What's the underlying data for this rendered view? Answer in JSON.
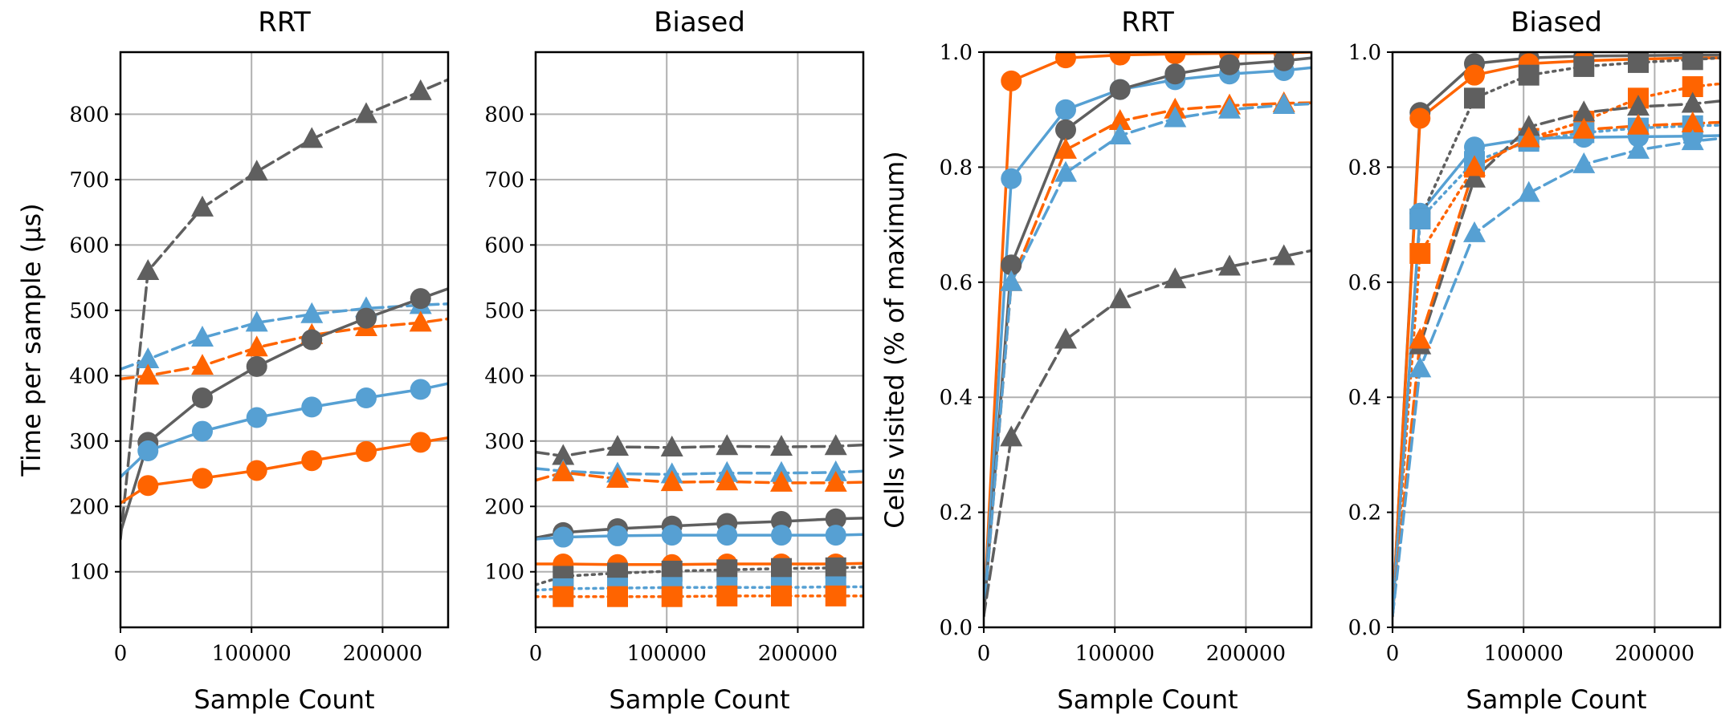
{
  "colors": {
    "orange": "#ff6400",
    "blue": "#56a0d3",
    "gray": "#5f5f5f",
    "grid": "#b0b0b0"
  },
  "chart_data": [
    {
      "type": "line",
      "title": "RRT",
      "xlabel": "Sample Count",
      "ylabel": "Time per sample (μs)",
      "xlim": [
        0,
        250000
      ],
      "ylim": [
        15,
        895
      ],
      "xticks": [
        0,
        100000,
        200000
      ],
      "xtick_labels": [
        "0",
        "100000",
        "200000"
      ],
      "yticks": [
        100,
        200,
        300,
        400,
        500,
        600,
        700,
        800
      ],
      "ytick_labels": [
        "100",
        "200",
        "300",
        "400",
        "500",
        "600",
        "700",
        "800"
      ],
      "series": [
        {
          "name": "gray triangle dashed",
          "color": "gray",
          "marker": "triangle",
          "dash": "dashed",
          "x": [
            0,
            21000,
            62500,
            104000,
            146000,
            187500,
            229000,
            250000
          ],
          "values": [
            150,
            560,
            657,
            712,
            762,
            800,
            835,
            853
          ]
        },
        {
          "name": "blue triangle dashed",
          "color": "blue",
          "marker": "triangle",
          "dash": "dashed",
          "x": [
            0,
            21000,
            62500,
            104000,
            146000,
            187500,
            229000,
            250000
          ],
          "values": [
            410,
            425,
            458,
            481,
            494,
            503,
            508,
            510
          ]
        },
        {
          "name": "orange triangle dashed",
          "color": "orange",
          "marker": "triangle",
          "dash": "dashed",
          "x": [
            0,
            21000,
            62500,
            104000,
            146000,
            187500,
            229000,
            250000
          ],
          "values": [
            395,
            400,
            415,
            443,
            462,
            474,
            481,
            487
          ]
        },
        {
          "name": "gray circle solid",
          "color": "gray",
          "marker": "circle",
          "dash": "solid",
          "x": [
            0,
            21000,
            62500,
            104000,
            146000,
            187500,
            229000,
            250000
          ],
          "values": [
            160,
            298,
            366,
            414,
            455,
            488,
            518,
            533
          ]
        },
        {
          "name": "blue circle solid",
          "color": "blue",
          "marker": "circle",
          "dash": "solid",
          "x": [
            0,
            21000,
            62500,
            104000,
            146000,
            187500,
            229000,
            250000
          ],
          "values": [
            245,
            285,
            315,
            336,
            352,
            366,
            379,
            388
          ]
        },
        {
          "name": "orange circle solid",
          "color": "orange",
          "marker": "circle",
          "dash": "solid",
          "x": [
            0,
            21000,
            62500,
            104000,
            146000,
            187500,
            229000,
            250000
          ],
          "values": [
            205,
            232,
            243,
            255,
            270,
            284,
            298,
            305
          ]
        }
      ]
    },
    {
      "type": "line",
      "title": "Biased",
      "xlabel": "Sample Count",
      "ylabel": "",
      "xlim": [
        0,
        250000
      ],
      "ylim": [
        15,
        895
      ],
      "xticks": [
        0,
        100000,
        200000
      ],
      "xtick_labels": [
        "0",
        "100000",
        "200000"
      ],
      "yticks": [
        100,
        200,
        300,
        400,
        500,
        600,
        700,
        800
      ],
      "ytick_labels": [
        "100",
        "200",
        "300",
        "400",
        "500",
        "600",
        "700",
        "800"
      ],
      "series": [
        {
          "name": "gray triangle dashed",
          "color": "gray",
          "marker": "triangle",
          "dash": "dashed",
          "x": [
            0,
            21000,
            62500,
            104000,
            146000,
            187500,
            229000,
            250000
          ],
          "values": [
            283,
            277,
            291,
            290,
            292,
            291,
            292,
            294
          ]
        },
        {
          "name": "blue triangle dashed",
          "color": "blue",
          "marker": "triangle",
          "dash": "dashed",
          "x": [
            0,
            21000,
            62500,
            104000,
            146000,
            187500,
            229000,
            250000
          ],
          "values": [
            258,
            254,
            250,
            249,
            251,
            251,
            252,
            254
          ]
        },
        {
          "name": "orange triangle dashed",
          "color": "orange",
          "marker": "triangle",
          "dash": "dashed",
          "x": [
            0,
            21000,
            62500,
            104000,
            146000,
            187500,
            229000,
            250000
          ],
          "values": [
            240,
            252,
            242,
            237,
            238,
            236,
            236,
            237
          ]
        },
        {
          "name": "gray circle solid",
          "color": "gray",
          "marker": "circle",
          "dash": "solid",
          "x": [
            0,
            21000,
            62500,
            104000,
            146000,
            187500,
            229000,
            250000
          ],
          "values": [
            152,
            160,
            166,
            170,
            174,
            177,
            181,
            182
          ]
        },
        {
          "name": "blue circle solid",
          "color": "blue",
          "marker": "circle",
          "dash": "solid",
          "x": [
            0,
            21000,
            62500,
            104000,
            146000,
            187500,
            229000,
            250000
          ],
          "values": [
            150,
            153,
            155,
            156,
            156,
            156,
            156,
            157
          ]
        },
        {
          "name": "orange circle solid",
          "color": "orange",
          "marker": "circle",
          "dash": "solid",
          "x": [
            0,
            21000,
            62500,
            104000,
            146000,
            187500,
            229000,
            250000
          ],
          "values": [
            112,
            112,
            111,
            111,
            112,
            112,
            112,
            113
          ]
        },
        {
          "name": "gray square dotted",
          "color": "gray",
          "marker": "square",
          "dash": "dotted",
          "x": [
            0,
            21000,
            62500,
            104000,
            146000,
            187500,
            229000,
            250000
          ],
          "values": [
            80,
            93,
            98,
            101,
            103,
            105,
            106,
            107
          ]
        },
        {
          "name": "blue square dotted",
          "color": "blue",
          "marker": "square",
          "dash": "dotted",
          "x": [
            0,
            21000,
            62500,
            104000,
            146000,
            187500,
            229000,
            250000
          ],
          "values": [
            72,
            74,
            75,
            76,
            76,
            76,
            77,
            77
          ]
        },
        {
          "name": "orange square dotted",
          "color": "orange",
          "marker": "square",
          "dash": "dotted",
          "x": [
            0,
            21000,
            62500,
            104000,
            146000,
            187500,
            229000,
            250000
          ],
          "values": [
            62,
            62,
            62,
            62,
            63,
            63,
            63,
            63
          ]
        }
      ]
    },
    {
      "type": "line",
      "title": "RRT",
      "xlabel": "Sample Count",
      "ylabel": "Cells visited (% of maximum)",
      "xlim": [
        0,
        250000
      ],
      "ylim": [
        0.0,
        1.0
      ],
      "xticks": [
        0,
        100000,
        200000
      ],
      "xtick_labels": [
        "0",
        "100000",
        "200000"
      ],
      "yticks": [
        0.0,
        0.2,
        0.4,
        0.6,
        0.8,
        1.0
      ],
      "ytick_labels": [
        "0.0",
        "0.2",
        "0.4",
        "0.6",
        "0.8",
        "1.0"
      ],
      "series": [
        {
          "name": "orange circle solid",
          "color": "orange",
          "marker": "circle",
          "dash": "solid",
          "x": [
            0,
            21000,
            62500,
            104000,
            146000,
            187500,
            229000,
            250000
          ],
          "values": [
            0.02,
            0.95,
            0.99,
            0.995,
            0.997,
            0.998,
            0.999,
            1.0
          ]
        },
        {
          "name": "blue circle solid",
          "color": "blue",
          "marker": "circle",
          "dash": "solid",
          "x": [
            0,
            21000,
            62500,
            104000,
            146000,
            187500,
            229000,
            250000
          ],
          "values": [
            0.02,
            0.78,
            0.9,
            0.935,
            0.952,
            0.962,
            0.968,
            0.973
          ]
        },
        {
          "name": "gray circle solid",
          "color": "gray",
          "marker": "circle",
          "dash": "solid",
          "x": [
            0,
            21000,
            62500,
            104000,
            146000,
            187500,
            229000,
            250000
          ],
          "values": [
            0.02,
            0.63,
            0.865,
            0.935,
            0.962,
            0.978,
            0.985,
            0.99
          ]
        },
        {
          "name": "orange triangle dashed",
          "color": "orange",
          "marker": "triangle",
          "dash": "dashed",
          "x": [
            0,
            21000,
            62500,
            104000,
            146000,
            187500,
            229000,
            250000
          ],
          "values": [
            0.02,
            0.6,
            0.83,
            0.88,
            0.9,
            0.907,
            0.911,
            0.912
          ]
        },
        {
          "name": "blue triangle dashed",
          "color": "blue",
          "marker": "triangle",
          "dash": "dashed",
          "x": [
            0,
            21000,
            62500,
            104000,
            146000,
            187500,
            229000,
            250000
          ],
          "values": [
            0.02,
            0.6,
            0.79,
            0.855,
            0.885,
            0.9,
            0.908,
            0.91
          ]
        },
        {
          "name": "gray triangle dashed",
          "color": "gray",
          "marker": "triangle",
          "dash": "dashed",
          "x": [
            0,
            21000,
            62500,
            104000,
            146000,
            187500,
            229000,
            250000
          ],
          "values": [
            0.02,
            0.33,
            0.5,
            0.57,
            0.605,
            0.627,
            0.645,
            0.655
          ]
        }
      ]
    },
    {
      "type": "line",
      "title": "Biased",
      "xlabel": "Sample Count",
      "ylabel": "",
      "xlim": [
        0,
        250000
      ],
      "ylim": [
        0.0,
        1.0
      ],
      "xticks": [
        0,
        100000,
        200000
      ],
      "xtick_labels": [
        "0",
        "100000",
        "200000"
      ],
      "yticks": [
        0.0,
        0.2,
        0.4,
        0.6,
        0.8,
        1.0
      ],
      "ytick_labels": [
        "0.0",
        "0.2",
        "0.4",
        "0.6",
        "0.8",
        "1.0"
      ],
      "series": [
        {
          "name": "gray circle solid",
          "color": "gray",
          "marker": "circle",
          "dash": "solid",
          "x": [
            0,
            21000,
            62500,
            104000,
            146000,
            187500,
            229000,
            250000
          ],
          "values": [
            0.02,
            0.895,
            0.98,
            0.99,
            0.993,
            0.994,
            0.995,
            0.995
          ]
        },
        {
          "name": "orange circle solid",
          "color": "orange",
          "marker": "circle",
          "dash": "solid",
          "x": [
            0,
            21000,
            62500,
            104000,
            146000,
            187500,
            229000,
            250000
          ],
          "values": [
            0.02,
            0.885,
            0.96,
            0.98,
            0.985,
            0.988,
            0.99,
            0.99
          ]
        },
        {
          "name": "blue circle solid",
          "color": "blue",
          "marker": "circle",
          "dash": "solid",
          "x": [
            0,
            21000,
            62500,
            104000,
            146000,
            187500,
            229000,
            250000
          ],
          "values": [
            0.02,
            0.72,
            0.835,
            0.85,
            0.852,
            0.853,
            0.854,
            0.855
          ]
        },
        {
          "name": "gray square dotted",
          "color": "gray",
          "marker": "square",
          "dash": "dotted",
          "x": [
            0,
            21000,
            62500,
            104000,
            146000,
            187500,
            229000,
            250000
          ],
          "values": [
            0.02,
            0.71,
            0.92,
            0.96,
            0.975,
            0.982,
            0.987,
            0.99
          ]
        },
        {
          "name": "orange square dotted",
          "color": "orange",
          "marker": "square",
          "dash": "dotted",
          "x": [
            0,
            21000,
            62500,
            104000,
            146000,
            187500,
            229000,
            250000
          ],
          "values": [
            0.02,
            0.65,
            0.8,
            0.85,
            0.88,
            0.92,
            0.94,
            0.945
          ]
        },
        {
          "name": "blue square dotted",
          "color": "blue",
          "marker": "square",
          "dash": "dotted",
          "x": [
            0,
            21000,
            62500,
            104000,
            146000,
            187500,
            229000,
            250000
          ],
          "values": [
            0.02,
            0.71,
            0.81,
            0.845,
            0.86,
            0.868,
            0.872,
            0.873
          ]
        },
        {
          "name": "gray triangle dashed",
          "color": "gray",
          "marker": "triangle",
          "dash": "dashed",
          "x": [
            0,
            21000,
            62500,
            104000,
            146000,
            187500,
            229000,
            250000
          ],
          "values": [
            0.02,
            0.49,
            0.78,
            0.87,
            0.895,
            0.905,
            0.91,
            0.915
          ]
        },
        {
          "name": "orange triangle dashed",
          "color": "orange",
          "marker": "triangle",
          "dash": "dashed",
          "x": [
            0,
            21000,
            62500,
            104000,
            146000,
            187500,
            229000,
            250000
          ],
          "values": [
            0.02,
            0.5,
            0.8,
            0.85,
            0.865,
            0.872,
            0.876,
            0.878
          ]
        },
        {
          "name": "blue triangle dashed",
          "color": "blue",
          "marker": "triangle",
          "dash": "dashed",
          "x": [
            0,
            21000,
            62500,
            104000,
            146000,
            187500,
            229000,
            250000
          ],
          "values": [
            0.02,
            0.45,
            0.685,
            0.755,
            0.805,
            0.83,
            0.845,
            0.85
          ]
        }
      ]
    }
  ]
}
